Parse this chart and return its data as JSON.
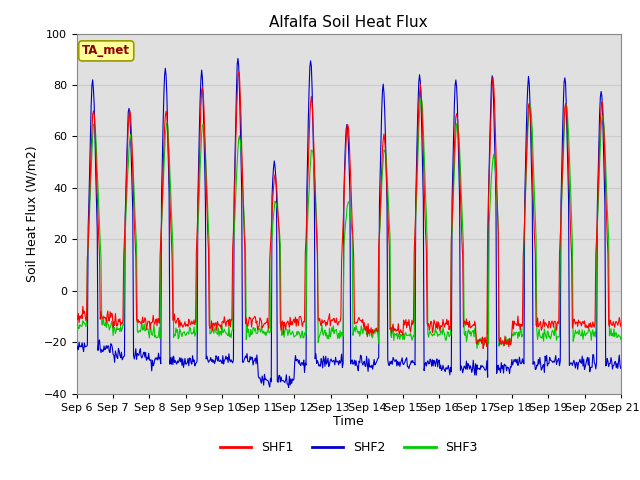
{
  "title": "Alfalfa Soil Heat Flux",
  "xlabel": "Time",
  "ylabel": "Soil Heat Flux (W/m2)",
  "ylim": [
    -40,
    100
  ],
  "xlim": [
    0,
    360
  ],
  "x_tick_labels": [
    "Sep 6",
    "Sep 7",
    "Sep 8",
    "Sep 9",
    "Sep 10",
    "Sep 11",
    "Sep 12",
    "Sep 13",
    "Sep 14",
    "Sep 15",
    "Sep 16",
    "Sep 17",
    "Sep 18",
    "Sep 19",
    "Sep 20",
    "Sep 21"
  ],
  "x_tick_positions": [
    0,
    24,
    48,
    72,
    96,
    120,
    144,
    168,
    192,
    216,
    240,
    264,
    288,
    312,
    336,
    360
  ],
  "colors": {
    "SHF1": "#ff0000",
    "SHF2": "#0000cc",
    "SHF3": "#00cc00"
  },
  "legend_label": "TA_met",
  "legend_box_bg": "#ffff99",
  "legend_box_edge": "#999900",
  "legend_text_color": "#880000",
  "grid_color": "#cccccc",
  "bg_color": "#e0e0e0",
  "plot_bg": "#ffffff",
  "day_peaks_shf1": [
    70,
    70,
    70,
    79,
    85,
    45,
    75,
    65,
    60,
    80,
    70,
    82,
    73,
    73,
    74
  ],
  "day_peaks_shf2": [
    82,
    71,
    87,
    85,
    90,
    50,
    90,
    65,
    80,
    84,
    83,
    83,
    83,
    83,
    78
  ],
  "day_peaks_shf3": [
    65,
    60,
    65,
    65,
    60,
    35,
    55,
    35,
    55,
    75,
    65,
    52,
    73,
    73,
    68
  ],
  "night_shf1": [
    -10,
    -12,
    -12,
    -13,
    -12,
    -13,
    -12,
    -12,
    -15,
    -13,
    -13,
    -20,
    -13,
    -13,
    -13
  ],
  "night_shf2": [
    -22,
    -25,
    -27,
    -27,
    -27,
    -35,
    -28,
    -28,
    -28,
    -28,
    -30,
    -30,
    -28,
    -28,
    -28
  ],
  "night_shf3": [
    -13,
    -15,
    -17,
    -16,
    -16,
    -16,
    -17,
    -16,
    -17,
    -17,
    -17,
    -20,
    -17,
    -17,
    -17
  ]
}
